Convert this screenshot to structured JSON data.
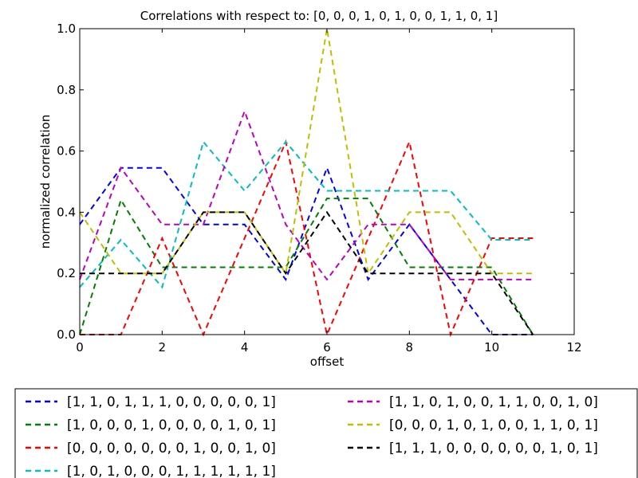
{
  "chart_data": {
    "type": "line",
    "title": "Correlations with respect to: [0, 0, 0, 1, 0, 1, 0, 0, 1, 1, 0, 1]",
    "xlabel": "offset",
    "ylabel": "normalized correlation",
    "xlim": [
      0,
      12
    ],
    "ylim": [
      0.0,
      1.0
    ],
    "xticks": [
      "0",
      "2",
      "4",
      "6",
      "8",
      "10",
      "12"
    ],
    "yticks": [
      "0.0",
      "0.2",
      "0.4",
      "0.6",
      "0.8",
      "1.0"
    ],
    "grid": false,
    "legend_position": "below-plot",
    "line_style": "dashed",
    "x": [
      0,
      1,
      2,
      3,
      4,
      5,
      6,
      7,
      8,
      9,
      10,
      11
    ],
    "series": [
      {
        "name": "[1, 1, 0, 1, 1, 1, 0, 0, 0, 0, 0, 1]",
        "color": "#0000ff",
        "values": [
          0.36,
          0.545,
          0.545,
          0.36,
          0.36,
          0.18,
          0.545,
          0.18,
          0.36,
          0.18,
          0.0,
          0.0
        ]
      },
      {
        "name": "[1, 0, 0, 0, 1, 0, 0, 0, 0, 1, 0, 1]",
        "color": "#008000",
        "values": [
          0.0,
          0.44,
          0.22,
          0.22,
          0.22,
          0.22,
          0.445,
          0.445,
          0.22,
          0.22,
          0.22,
          0.0
        ]
      },
      {
        "name": "[0, 0, 0, 0, 0, 0, 0, 1, 0, 0, 1, 0]",
        "color": "#ff0000",
        "values": [
          0.0,
          0.0,
          0.315,
          0.0,
          0.315,
          0.63,
          0.0,
          0.315,
          0.63,
          0.0,
          0.315,
          0.315
        ]
      },
      {
        "name": "[1, 0, 1, 0, 0, 0, 1, 1, 1, 1, 1, 1]",
        "color": "#00bfbf",
        "values": [
          0.155,
          0.31,
          0.155,
          0.63,
          0.47,
          0.63,
          0.47,
          0.47,
          0.47,
          0.47,
          0.31,
          0.31
        ]
      },
      {
        "name": "[1, 1, 0, 1, 0, 0, 1, 1, 0, 0, 1, 0]",
        "color": "#bf00bf",
        "values": [
          0.18,
          0.545,
          0.36,
          0.36,
          0.73,
          0.36,
          0.18,
          0.36,
          0.36,
          0.18,
          0.18,
          0.18
        ]
      },
      {
        "name": "[0, 0, 0, 1, 0, 1, 0, 0, 1, 1, 0, 1]",
        "color": "#bfbf00",
        "values": [
          0.4,
          0.2,
          0.2,
          0.4,
          0.4,
          0.2,
          1.0,
          0.2,
          0.4,
          0.4,
          0.2,
          0.2
        ]
      },
      {
        "name": "[1, 1, 1, 0, 0, 0, 0, 0, 0, 1, 0, 1]",
        "color": "#000000",
        "values": [
          0.2,
          0.2,
          0.2,
          0.4,
          0.4,
          0.2,
          0.4,
          0.2,
          0.2,
          0.2,
          0.2,
          0.0
        ]
      }
    ]
  }
}
